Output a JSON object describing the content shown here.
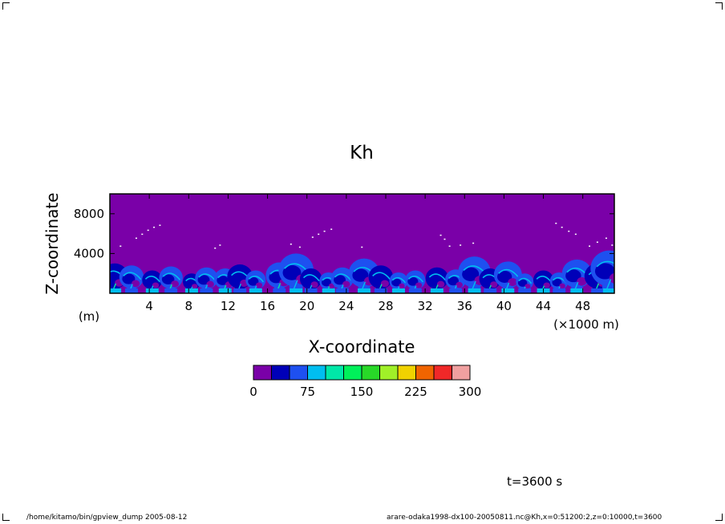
{
  "chart_data": {
    "type": "heatmap",
    "title": "Kh",
    "xlabel": "X-coordinate",
    "ylabel": "Z-coordinate",
    "x_unit_label": "(×1000 m)",
    "y_unit_label": "(m)",
    "xlim": [
      0,
      51.2
    ],
    "ylim": [
      0,
      10000
    ],
    "x_ticks": [
      4,
      8,
      12,
      16,
      20,
      24,
      28,
      32,
      36,
      40,
      44,
      48
    ],
    "y_ticks": [
      4000,
      8000
    ],
    "colorbar": {
      "levels": [
        0,
        25,
        50,
        75,
        100,
        125,
        150,
        175,
        200,
        225,
        250,
        275,
        300
      ],
      "tick_labels": [
        0,
        75,
        150,
        225,
        300
      ],
      "colors": [
        "#7a00a8",
        "#0000b8",
        "#1e50f0",
        "#00bef0",
        "#00e8a8",
        "#00f05a",
        "#28d828",
        "#a0f028",
        "#f0d200",
        "#f06400",
        "#f02828",
        "#f0a0a0"
      ]
    },
    "plumes": [
      {
        "x": 0.5,
        "top": 3000,
        "level": 1
      },
      {
        "x": 2.2,
        "top": 2800,
        "level": 2
      },
      {
        "x": 4.3,
        "top": 2300,
        "level": 1
      },
      {
        "x": 6.2,
        "top": 2700,
        "level": 2
      },
      {
        "x": 8.3,
        "top": 2000,
        "level": 1
      },
      {
        "x": 9.8,
        "top": 2600,
        "level": 2
      },
      {
        "x": 11.7,
        "top": 2500,
        "level": 2
      },
      {
        "x": 13.2,
        "top": 2900,
        "level": 1
      },
      {
        "x": 14.8,
        "top": 2300,
        "level": 2
      },
      {
        "x": 17.2,
        "top": 3100,
        "level": 2
      },
      {
        "x": 18.9,
        "top": 4000,
        "level": 2
      },
      {
        "x": 20.4,
        "top": 2500,
        "level": 1
      },
      {
        "x": 22.2,
        "top": 2100,
        "level": 2
      },
      {
        "x": 23.6,
        "top": 2600,
        "level": 2
      },
      {
        "x": 25.8,
        "top": 3500,
        "level": 2
      },
      {
        "x": 27.5,
        "top": 2800,
        "level": 1
      },
      {
        "x": 29.3,
        "top": 2100,
        "level": 2
      },
      {
        "x": 31.0,
        "top": 2300,
        "level": 2
      },
      {
        "x": 33.2,
        "top": 2600,
        "level": 1
      },
      {
        "x": 35.1,
        "top": 2400,
        "level": 2
      },
      {
        "x": 37.0,
        "top": 3700,
        "level": 2
      },
      {
        "x": 38.6,
        "top": 2500,
        "level": 1
      },
      {
        "x": 40.4,
        "top": 3200,
        "level": 2
      },
      {
        "x": 42.1,
        "top": 2000,
        "level": 2
      },
      {
        "x": 44.0,
        "top": 2300,
        "level": 1
      },
      {
        "x": 45.6,
        "top": 2100,
        "level": 2
      },
      {
        "x": 47.4,
        "top": 3400,
        "level": 2
      },
      {
        "x": 49.5,
        "top": 3000,
        "level": 1
      },
      {
        "x": 50.7,
        "top": 4300,
        "level": 2
      }
    ],
    "specks": [
      {
        "x": 2.6,
        "z": 5600
      },
      {
        "x": 3.2,
        "z": 6000
      },
      {
        "x": 3.8,
        "z": 6400
      },
      {
        "x": 4.4,
        "z": 6700
      },
      {
        "x": 5.0,
        "z": 6900
      },
      {
        "x": 1.0,
        "z": 4800
      },
      {
        "x": 10.6,
        "z": 4600
      },
      {
        "x": 11.1,
        "z": 4900
      },
      {
        "x": 18.3,
        "z": 5000
      },
      {
        "x": 19.2,
        "z": 4700
      },
      {
        "x": 20.5,
        "z": 5700
      },
      {
        "x": 21.1,
        "z": 6000
      },
      {
        "x": 21.7,
        "z": 6300
      },
      {
        "x": 22.4,
        "z": 6500
      },
      {
        "x": 25.5,
        "z": 4700
      },
      {
        "x": 33.5,
        "z": 5900
      },
      {
        "x": 33.9,
        "z": 5500
      },
      {
        "x": 34.4,
        "z": 4800
      },
      {
        "x": 35.5,
        "z": 4900
      },
      {
        "x": 36.8,
        "z": 5100
      },
      {
        "x": 45.2,
        "z": 7100
      },
      {
        "x": 45.8,
        "z": 6700
      },
      {
        "x": 46.5,
        "z": 6300
      },
      {
        "x": 47.2,
        "z": 6000
      },
      {
        "x": 48.6,
        "z": 4800
      },
      {
        "x": 49.4,
        "z": 5200
      },
      {
        "x": 50.3,
        "z": 5600
      },
      {
        "x": 50.9,
        "z": 4900
      }
    ]
  },
  "time_label": "t=3600 s",
  "footer_left": "/home/kitamo/bin/gpview_dump   2005-08-12",
  "footer_right": "arare-odaka1998-dx100-20050811.nc@Kh,x=0:51200:2,z=0:10000,t=3600"
}
